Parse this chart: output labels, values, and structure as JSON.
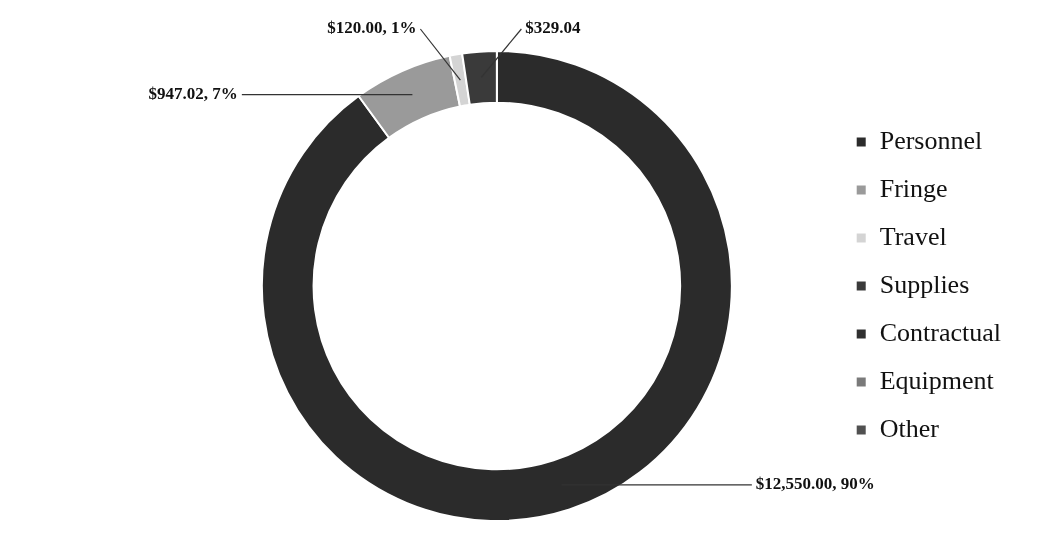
{
  "chart_data": {
    "type": "donut",
    "categories": [
      "Personnel",
      "Fringe",
      "Travel",
      "Supplies",
      "Contractual",
      "Equipment",
      "Other"
    ],
    "values": [
      12550,
      947.02,
      120,
      329.04,
      0,
      0,
      0
    ],
    "value_labels": [
      "$12,550.00, 90%",
      "$947.02, 7%",
      "$120.00, 1%",
      "$329.04",
      null,
      null,
      null
    ],
    "colors": [
      "#2b2b2b",
      "#9a9a9a",
      "#d4d4d4",
      "#3a3a3a",
      "#303030",
      "#7a7a7a",
      "#505050"
    ],
    "legend": "right"
  }
}
